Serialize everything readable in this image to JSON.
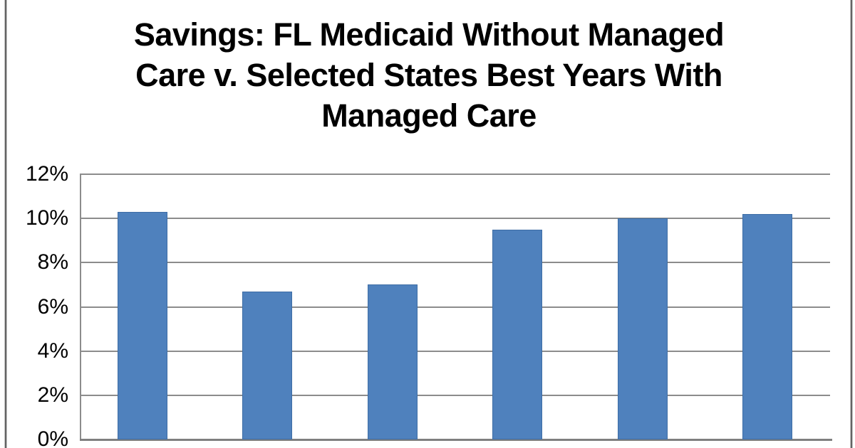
{
  "frame": {
    "background_color": "#ffffff",
    "side_border_color": "#636363"
  },
  "title": {
    "lines": [
      "Savings: FL Medicaid Without Managed",
      "Care v. Selected States Best Years With",
      "Managed Care"
    ],
    "color": "#000000"
  },
  "chart_data": {
    "type": "bar",
    "title": "Savings: FL Medicaid Without Managed Care v. Selected States Best Years With Managed Care",
    "values": [
      10.3,
      6.7,
      7.0,
      9.5,
      10.0,
      10.2
    ],
    "unit": "%",
    "x_tick_labels": [],
    "ytick_labels_top_to_bottom": [
      "12%",
      "10%",
      "8%",
      "6%",
      "4%",
      "2%",
      "0%"
    ],
    "ylim": [
      0,
      12
    ],
    "ytick_step": 2,
    "grid": "horizontal",
    "legend": "none",
    "bar_fill_color": "#4F81BD",
    "bar_border_color": "#3E6DA5",
    "gridline_color": "#8C8C8C",
    "axis_line_color": "#7F7F7F",
    "tick_label_color": "#000000"
  }
}
